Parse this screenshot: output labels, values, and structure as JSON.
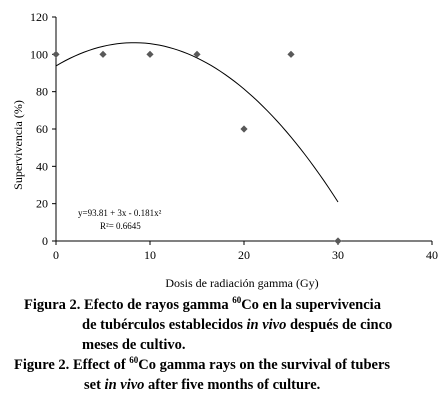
{
  "chart_data": {
    "type": "scatter",
    "xlabel": "Dosis de radiación gamma (Gy)",
    "ylabel": "Supervivencia (%)",
    "xlim": [
      0,
      40
    ],
    "ylim": [
      0,
      120
    ],
    "x_ticks": [
      0,
      10,
      20,
      30,
      40
    ],
    "y_ticks": [
      0,
      20,
      40,
      60,
      80,
      100,
      120
    ],
    "grid": false,
    "marker_color": "#595959",
    "series": [
      {
        "x": [
          0,
          5,
          10,
          15,
          20,
          25,
          30
        ],
        "y": [
          100,
          100,
          100,
          100,
          60,
          100,
          0
        ]
      }
    ],
    "trendline": {
      "type": "polynomial",
      "coefficients": {
        "c": 93.81,
        "b": 3,
        "a": -0.181
      },
      "x_range": [
        0,
        30
      ],
      "equation_text": "y=93.81 + 3x - 0.181x²",
      "r2_text": "R²= 0.6645"
    }
  },
  "caption": {
    "es_label": "Figura 2.",
    "es_line1_pre": " Efecto de rayos gamma ",
    "es_sup": "60",
    "es_line1_post": "Co en la supervivencia",
    "es_line2_pre": "de tubérculos establecidos ",
    "es_line2_italic": "in vivo",
    "es_line2_post": " después de cinco",
    "es_line3": "meses de cultivo.",
    "en_label": "Figure 2.",
    "en_line1_pre": " Effect of ",
    "en_sup": "60",
    "en_line1_post": "Co gamma rays on the survival of tubers",
    "en_line2_pre": "set ",
    "en_line2_italic": "in vivo",
    "en_line2_post": " after five months of culture."
  }
}
